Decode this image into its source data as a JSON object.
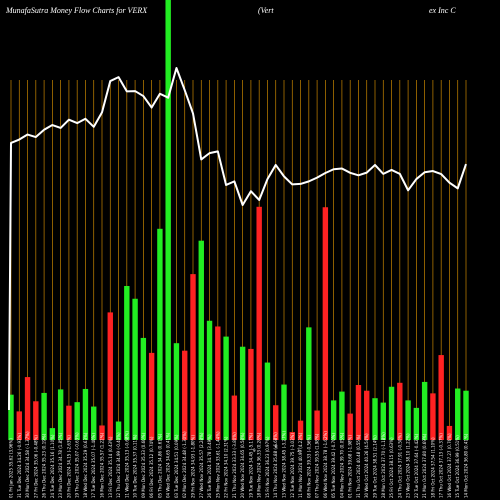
{
  "chart_data": {
    "type": "bar",
    "title": "MunafaSutra  Money Flow  Charts for VERX",
    "subtitle_left": "(Vert",
    "subtitle_right": "ex Inc C",
    "xlabel": "",
    "ylabel": "",
    "categories": [
      "01 Fri Jan 2025",
      "31 Tue Dec 2024",
      "30 Mon Dec 2024",
      "27 Fri Dec 2024",
      "26 Thu Dec 2024",
      "24 Tue Dec 2024",
      "23 Mon Dec 2024",
      "20 Fri Dec 2024",
      "19 Thu Dec 2024",
      "18 Wed Dec 2024",
      "17 Tue Dec 2024",
      "16 Mon Dec 2024",
      "13 Fri Dec 2024",
      "12 Thu Dec 2024",
      "11 Wed Dec 2024",
      "10 Tue Dec 2024",
      "09 Mon Dec 2024",
      "06 Fri Dec 2024",
      "05 Thu Dec 2024",
      "04 Wed Dec 2024",
      "03 Tue Dec 2024",
      "02 Mon Dec 2024",
      "29 Fri Nov 2024",
      "27 Wed Nov 2024",
      "26 Tue Nov 2024",
      "25 Mon Nov 2024",
      "22 Fri Nov 2024",
      "21 Thu Nov 2024",
      "20 Wed Nov 2024",
      "19 Tue Nov 2024",
      "18 Mon Nov 2024",
      "15 Fri Nov 2024",
      "14 Thu Nov 2024",
      "13 Wed Nov 2024",
      "12 Tue Nov 2024",
      "11 Mon Nov 2024",
      "08 Fri Nov 2024",
      "07 Thu Nov 2024",
      "06 Wed Nov 2024",
      "05 Tue Nov 2024",
      "04 Mon Nov 2024",
      "01 Fri Nov 2024",
      "31 Thu Oct 2024",
      "30 Wed Oct 2024",
      "29 Tue Oct 2024",
      "28 Mon Oct 2024",
      "25 Fri Oct 2024",
      "24 Thu Oct 2024",
      "23 Wed Oct 2024",
      "22 Tue Oct 2024",
      "21 Mon Oct 2024",
      "18 Fri Oct 2024",
      "17 Thu Oct 2024",
      "16 Wed Oct 2024",
      "15 Tue Oct 2024",
      "14 Mon Oct 2024"
    ],
    "flow_labels": [
      "35.62 (3.96%)",
      "34.26 (-0.93%)",
      "34.58 (-1.37%)",
      "35.06 (-0.48%)",
      "35.23 (0.19%)",
      "35.16 (1.10%)",
      "34.78 (1.85%)",
      "34.15 (-2.63%)",
      "35.07 (-0.63%)",
      "35.29 (0.63%)",
      "35.07 (-1.40%)",
      "35.57 (1.22%)",
      "35.14 (0.43%)",
      "34.99 (-0.40%)",
      "35.13 (-0.68%)",
      "35.37 (0.11%)",
      "35.33 (0.60%)",
      "35.12 (0.74%)",
      "34.86 (0.61%)",
      "34.65 (0.41%)",
      "34.51 (0.09%)",
      "34.48 (-1.30%)",
      "34.93 (-1.80%)",
      "35.57 (2.28%)",
      "34.78 (3.49%)",
      "33.61 (-1.44%)",
      "34.10 (2.31%)",
      "33.33 (-3.80%)",
      "34.65 (0.58%)",
      "34.45 (-5.17%)",
      "36.33 (0.28%)",
      "36.23 (0.97%)",
      "35.88 (-6.68%)",
      "38.45 (-3.27%)",
      "39.75 (-3.03%)",
      "40.99 (4.23%)",
      "39.33 (-0.56%)",
      "39.55 (1.98%)",
      "38.78 (-1.62%)",
      "39.42 (-0.70%)",
      "39.70 (0.05%)",
      "39.68 (-1.98%)",
      "40.48 (0.55%)",
      "40.26 (4.54%)",
      "38.51 (2.14%)",
      "37.70 (-1.18%)",
      "38.15 (0.63%)",
      "37.91 (-0.50%)",
      "38.10 (1.22%)",
      "37.64 (-0.42%)",
      "37.80 (0.69%)",
      "37.54 (1.10%)",
      "37.13 (-0.37%)",
      "37.27 (0.76%)",
      "36.99 (0.51%)",
      "36.80 (0.41%)"
    ],
    "mid_labels": [
      "9",
      "8",
      "3"
    ],
    "flow_direction": [
      "up",
      "down",
      "down",
      "down",
      "up",
      "up",
      "up",
      "down",
      "up",
      "up",
      "up",
      "down",
      "down",
      "up",
      "up",
      "up",
      "up",
      "down",
      "up",
      "up",
      "up",
      "down",
      "down",
      "up",
      "up",
      "down",
      "up",
      "down",
      "up",
      "down",
      "down",
      "up",
      "down",
      "up",
      "down",
      "down",
      "up",
      "down",
      "down",
      "up",
      "up",
      "down",
      "down",
      "down",
      "up",
      "up",
      "up",
      "down",
      "up",
      "up",
      "up",
      "down",
      "down",
      "down",
      "up",
      "up"
    ],
    "bar_values": [
      10.3,
      6.5,
      14.3,
      8.8,
      10.7,
      2.7,
      11.5,
      7.8,
      8.6,
      11.6,
      7.6,
      3.3,
      29.0,
      4.2,
      35.0,
      32.1,
      23.2,
      19.8,
      48.0,
      100.0,
      22.0,
      20.3,
      37.7,
      45.3,
      27.1,
      25.8,
      23.5,
      10.1,
      21.2,
      20.7,
      53.0,
      17.6,
      7.9,
      12.6,
      1.8,
      4.4,
      25.6,
      6.7,
      52.9,
      9.0,
      11.0,
      6.0,
      12.5,
      11.2,
      9.5,
      8.5,
      12.1,
      13.0,
      9.0,
      7.3,
      13.2,
      10.6,
      19.3,
      3.2,
      11.7,
      11.2
    ],
    "colors": {
      "up": "#22ee22",
      "down": "#ff2222",
      "line": "#ffffff",
      "gridline": "#c88600",
      "background": "#000000"
    },
    "price_line": [
      36.8,
      36.99,
      37.27,
      37.13,
      37.54,
      37.8,
      37.64,
      38.1,
      37.91,
      38.15,
      37.7,
      38.51,
      40.26,
      40.48,
      39.68,
      39.7,
      39.42,
      38.78,
      39.55,
      39.33,
      40.99,
      39.75,
      38.45,
      35.88,
      36.23,
      36.33,
      34.45,
      34.65,
      33.33,
      34.1,
      33.61,
      34.78,
      35.57,
      34.93,
      34.48,
      34.51,
      34.65,
      34.86,
      35.12,
      35.33,
      35.37,
      35.13,
      34.99,
      35.14,
      35.57,
      35.07,
      35.29,
      35.07,
      34.15,
      34.78,
      35.16,
      35.23,
      35.06,
      34.58,
      34.26,
      35.62
    ],
    "ylim": [
      0,
      100
    ],
    "grid": true
  }
}
